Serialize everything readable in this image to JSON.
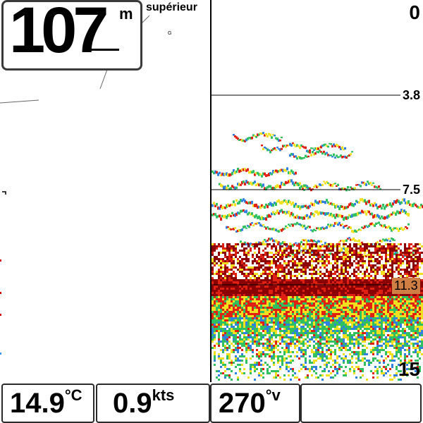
{
  "depth": {
    "value": "107",
    "unit": "m"
  },
  "view_mode": "supérieur",
  "small_label": "G",
  "sonar_scale": {
    "top": "0",
    "marks": [
      "3.8",
      "7.5"
    ],
    "fish_depth": "11.3",
    "bottom": "15"
  },
  "status": [
    {
      "value": "14.9",
      "unit": "°C"
    },
    {
      "value": "0.9",
      "unit": "kts"
    },
    {
      "value": "270",
      "unit": "°v"
    },
    {
      "value": "",
      "unit": ""
    }
  ],
  "colors": {
    "echo_strong": "#8b0000",
    "echo_red": "#e02010",
    "echo_yellow": "#f0e020",
    "echo_green": "#30c060",
    "echo_blue": "#3080e0",
    "fish_depth_bg": "#cf7e44"
  }
}
